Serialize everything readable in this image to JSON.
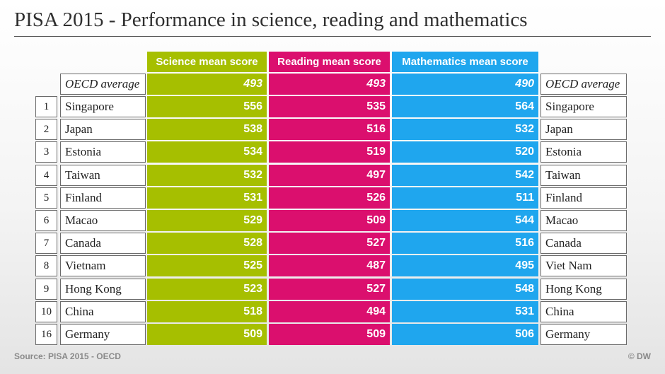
{
  "title": "PISA 2015 - Performance in science, reading and mathematics",
  "chart_data": {
    "type": "table",
    "columns": [
      "Science mean score",
      "Reading mean score",
      "Mathematics mean score"
    ],
    "oecd": {
      "label": "OECD average",
      "science": "493",
      "reading": "493",
      "math": "490"
    },
    "rows": [
      {
        "rank": "1",
        "country": "Singapore",
        "science": "556",
        "reading": "535",
        "math": "564",
        "country_right": "Singapore"
      },
      {
        "rank": "2",
        "country": "Japan",
        "science": "538",
        "reading": "516",
        "math": "532",
        "country_right": "Japan"
      },
      {
        "rank": "3",
        "country": "Estonia",
        "science": "534",
        "reading": "519",
        "math": "520",
        "country_right": "Estonia"
      },
      {
        "rank": "4",
        "country": "Taiwan",
        "science": "532",
        "reading": "497",
        "math": "542",
        "country_right": "Taiwan"
      },
      {
        "rank": "5",
        "country": "Finland",
        "science": "531",
        "reading": "526",
        "math": "511",
        "country_right": "Finland"
      },
      {
        "rank": "6",
        "country": "Macao",
        "science": "529",
        "reading": "509",
        "math": "544",
        "country_right": "Macao"
      },
      {
        "rank": "7",
        "country": "Canada",
        "science": "528",
        "reading": "527",
        "math": "516",
        "country_right": "Canada"
      },
      {
        "rank": "8",
        "country": "Vietnam",
        "science": "525",
        "reading": "487",
        "math": "495",
        "country_right": "Viet Nam"
      },
      {
        "rank": "9",
        "country": "Hong Kong",
        "science": "523",
        "reading": "527",
        "math": "548",
        "country_right": "Hong Kong"
      },
      {
        "rank": "10",
        "country": "China",
        "science": "518",
        "reading": "494",
        "math": "531",
        "country_right": "China"
      },
      {
        "rank": "16",
        "country": "Germany",
        "science": "509",
        "reading": "509",
        "math": "506",
        "country_right": "Germany"
      }
    ]
  },
  "colors": {
    "science": "#a6bf00",
    "reading": "#db0f6e",
    "math": "#1fa6ee"
  },
  "footer": {
    "source": "Source: PISA 2015 - OECD",
    "credit": "© DW"
  }
}
